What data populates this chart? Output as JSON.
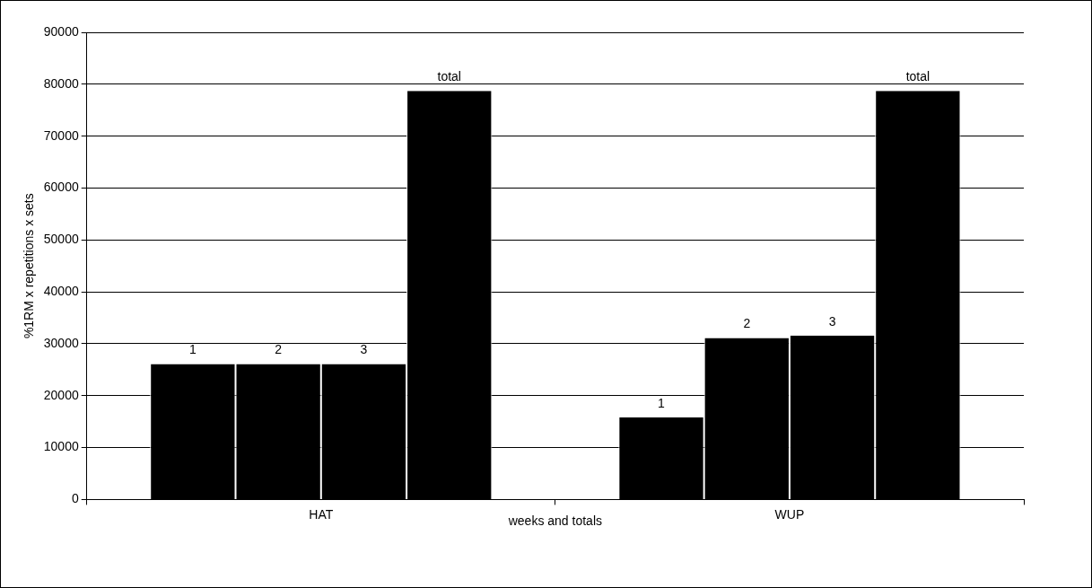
{
  "chart_data": {
    "type": "bar",
    "categories": [
      "HAT",
      "WUP"
    ],
    "xlabel": "weeks and totals",
    "ylabel": "%1RM x repetitions x sets",
    "series": [
      {
        "name": "1",
        "color": "#000000",
        "values": [
          26100,
          15800
        ]
      },
      {
        "name": "2",
        "color": "#000000",
        "values": [
          26100,
          31100
        ]
      },
      {
        "name": "3",
        "color": "#000000",
        "values": [
          26100,
          31600
        ]
      },
      {
        "name": "total",
        "color": "#000000",
        "values": [
          78700,
          78700
        ]
      }
    ],
    "ylim": [
      0,
      90000
    ],
    "yticks": [
      0,
      10000,
      20000,
      30000,
      40000,
      50000,
      60000,
      70000,
      80000,
      90000
    ],
    "grid": "y",
    "legend": false
  }
}
